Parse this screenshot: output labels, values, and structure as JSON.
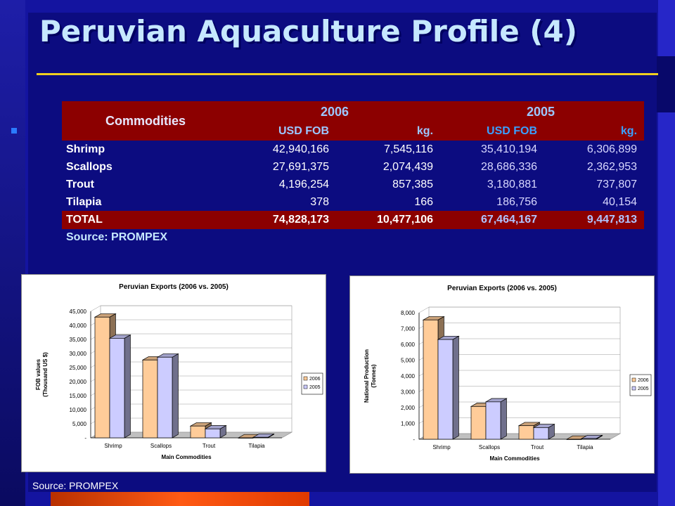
{
  "title": "Peruvian Aquaculture Profile (4)",
  "table": {
    "commodities_label": "Commodities",
    "year_2006": "2006",
    "year_2005": "2005",
    "subheaders": [
      "USD FOB",
      "kg.",
      "USD FOB",
      "kg."
    ],
    "rows": [
      {
        "name": "Shrimp",
        "usd2006": "42,940,166",
        "kg2006": "7,545,116",
        "usd2005": "35,410,194",
        "kg2005": "6,306,899"
      },
      {
        "name": "Scallops",
        "usd2006": "27,691,375",
        "kg2006": "2,074,439",
        "usd2005": "28,686,336",
        "kg2005": "2,362,953"
      },
      {
        "name": "Trout",
        "usd2006": "4,196,254",
        "kg2006": "857,385",
        "usd2005": "3,180,881",
        "kg2005": "737,807"
      },
      {
        "name": "Tilapia",
        "usd2006": "378",
        "kg2006": "166",
        "usd2005": "186,756",
        "kg2005": "40,154"
      }
    ],
    "total": {
      "name": "TOTAL",
      "usd2006": "74,828,173",
      "kg2006": "10,477,106",
      "usd2005": "67,464,167",
      "kg2005": "9,447,813"
    },
    "source": "Source: PROMPEX"
  },
  "footer_source": "Source: PROMPEX",
  "colors": {
    "series2006": "#ffcc99",
    "series2005": "#ccccff"
  },
  "chart_data": [
    {
      "type": "bar",
      "title": "Peruvian Exports (2006 vs. 2005)",
      "xlabel": "Main Commodities",
      "ylabel": "FOB values (Thousand US $)",
      "ylabel_lines": [
        "FOB values",
        "(Thousand US $)"
      ],
      "categories": [
        "Shrimp",
        "Scallops",
        "Trout",
        "Tilapia"
      ],
      "series": [
        {
          "name": "2006",
          "values": [
            42940,
            27691,
            4196,
            0.378
          ]
        },
        {
          "name": "2005",
          "values": [
            35410,
            28686,
            3181,
            187
          ]
        }
      ],
      "ylim": [
        0,
        45000
      ],
      "yticks": [
        0,
        5000,
        10000,
        15000,
        20000,
        25000,
        30000,
        35000,
        40000,
        45000
      ],
      "ytick_labels": [
        "-",
        "5,000",
        "10,000",
        "15,000",
        "20,000",
        "25,000",
        "30,000",
        "35,000",
        "40,000",
        "45,000"
      ],
      "grid": true,
      "legend": "right"
    },
    {
      "type": "bar",
      "title": "Peruvian Exports (2006 vs. 2005)",
      "xlabel": "Main Commodities",
      "ylabel": "National Production (Tonnes)",
      "ylabel_lines": [
        "National Production",
        "(Tonnes)"
      ],
      "categories": [
        "Shrimp",
        "Scallops",
        "Trout",
        "Tilapia"
      ],
      "series": [
        {
          "name": "2006",
          "values": [
            7545,
            2074,
            857,
            0.166
          ]
        },
        {
          "name": "2005",
          "values": [
            6307,
            2363,
            738,
            40
          ]
        }
      ],
      "ylim": [
        0,
        8000
      ],
      "yticks": [
        0,
        1000,
        2000,
        3000,
        4000,
        5000,
        6000,
        7000,
        8000
      ],
      "ytick_labels": [
        "-",
        "1,000",
        "2,000",
        "3,000",
        "4,000",
        "5,000",
        "6,000",
        "7,000",
        "8,000"
      ],
      "grid": true,
      "legend": "right"
    }
  ]
}
